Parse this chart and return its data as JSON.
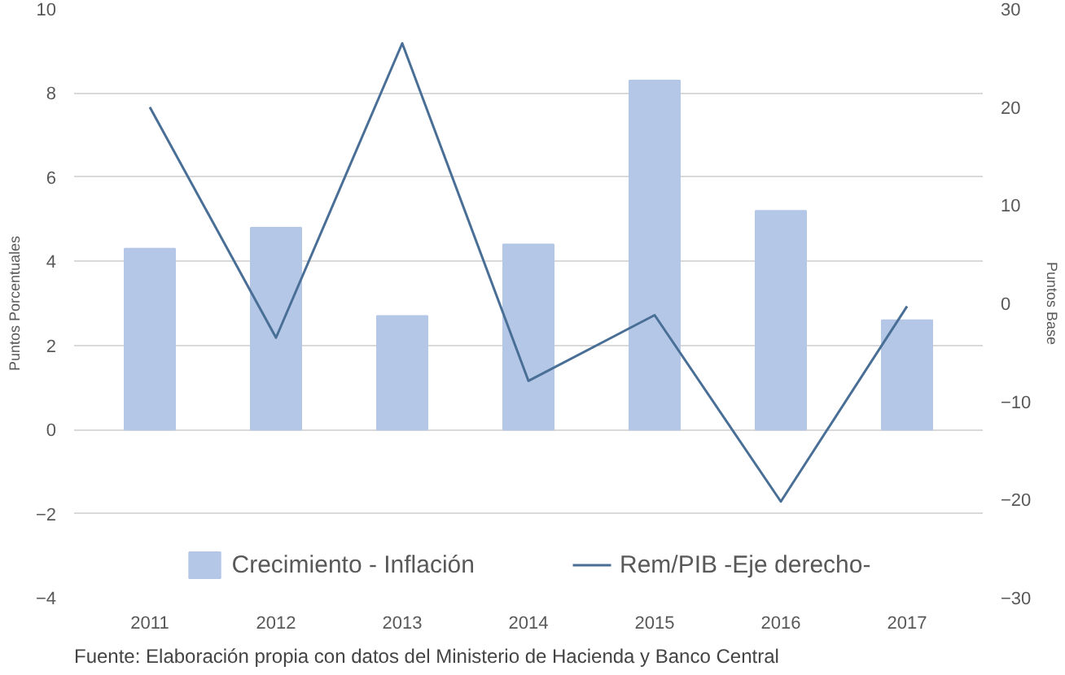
{
  "chart_data": {
    "type": "bar",
    "categories": [
      "2011",
      "2012",
      "2013",
      "2014",
      "2015",
      "2016",
      "2017"
    ],
    "series": [
      {
        "name": "Crecimiento - Inflación",
        "color": "#b4c7e7",
        "values": [
          4.3,
          4.8,
          2.7,
          4.4,
          8.3,
          5.2,
          2.6
        ]
      },
      {
        "name": "Rem/PIB -Eje derecho-",
        "type": "line",
        "axis": "y2",
        "color": "#4a6f96",
        "values": [
          20,
          -3.5,
          26.5,
          -7.9,
          -1.2,
          -20.2,
          -0.3
        ]
      }
    ],
    "ylabel": "Puntos Porcentuales",
    "y2label": "Puntos Base",
    "ylim": [
      -4,
      10
    ],
    "yticks": [
      -4,
      -2,
      0,
      2,
      4,
      6,
      8,
      10
    ],
    "y2lim": [
      -30,
      30
    ],
    "y2ticks": [
      -30,
      -20,
      -10,
      0,
      10,
      20,
      30
    ],
    "grid": "y",
    "legend": "bottom",
    "annotations": [
      "Fuente: Elaboración propia con datos del Ministerio de Hacienda y Banco Central"
    ]
  }
}
